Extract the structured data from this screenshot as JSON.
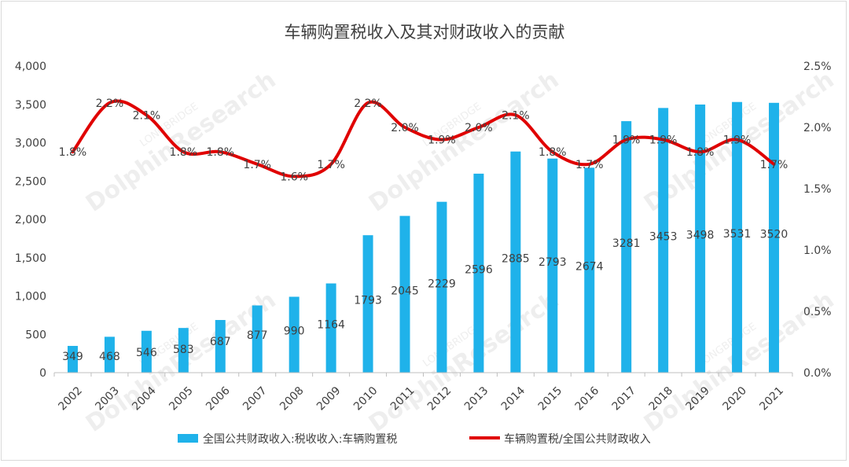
{
  "chart_data": {
    "type": "bar+line",
    "title": "车辆购置税收入及其对财政收入的贡献",
    "categories": [
      "2002",
      "2003",
      "2004",
      "2005",
      "2006",
      "2007",
      "2008",
      "2009",
      "2010",
      "2011",
      "2012",
      "2013",
      "2014",
      "2015",
      "2016",
      "2017",
      "2018",
      "2019",
      "2020",
      "2021"
    ],
    "series": [
      {
        "name": "全国公共财政收入:税收收入:车辆购置税",
        "type": "bar",
        "axis": "left",
        "color": "#1FB2EA",
        "values": [
          349,
          468,
          546,
          583,
          687,
          877,
          990,
          1164,
          1793,
          2045,
          2229,
          2596,
          2885,
          2793,
          2674,
          3281,
          3453,
          3498,
          3531,
          3520
        ],
        "labels": [
          "349",
          "468",
          "546",
          "583",
          "687",
          "877",
          "990",
          "1164",
          "1793",
          "2045",
          "2229",
          "2596",
          "2885",
          "2793",
          "2674",
          "3281",
          "3453",
          "3498",
          "3531",
          "3520"
        ]
      },
      {
        "name": "车辆购置税/全国公共财政收入",
        "type": "line",
        "axis": "right",
        "color": "#E00000",
        "values": [
          1.8,
          2.2,
          2.1,
          1.8,
          1.8,
          1.7,
          1.6,
          1.7,
          2.2,
          2.0,
          1.9,
          2.0,
          2.1,
          1.8,
          1.7,
          1.9,
          1.9,
          1.8,
          1.9,
          1.7
        ],
        "labels": [
          "1.8%",
          "2.2%",
          "2.1%",
          "1.8%",
          "1.8%",
          "1.7%",
          "1.6%",
          "1.7%",
          "2.2%",
          "2.0%",
          "1.9%",
          "2.0%",
          "2.1%",
          "1.8%",
          "1.7%",
          "1.9%",
          "1.9%",
          "1.8%",
          "1.9%",
          "1.7%"
        ]
      }
    ],
    "y_left": {
      "min": 0,
      "max": 4000,
      "ticks": [
        0,
        500,
        1000,
        1500,
        2000,
        2500,
        3000,
        3500,
        4000
      ],
      "tick_labels": [
        "0",
        "500",
        "1,000",
        "1,500",
        "2,000",
        "2,500",
        "3,000",
        "3,500",
        "4,000"
      ]
    },
    "y_right": {
      "min": 0,
      "max": 2.5,
      "ticks": [
        0,
        0.5,
        1.0,
        1.5,
        2.0,
        2.5
      ],
      "tick_labels": [
        "0.0%",
        "0.5%",
        "1.0%",
        "1.5%",
        "2.0%",
        "2.5%"
      ]
    },
    "grid": false,
    "legend_position": "bottom"
  },
  "watermark": {
    "line1": "LONGBRIDGE",
    "line2": "DolphinResearch"
  }
}
